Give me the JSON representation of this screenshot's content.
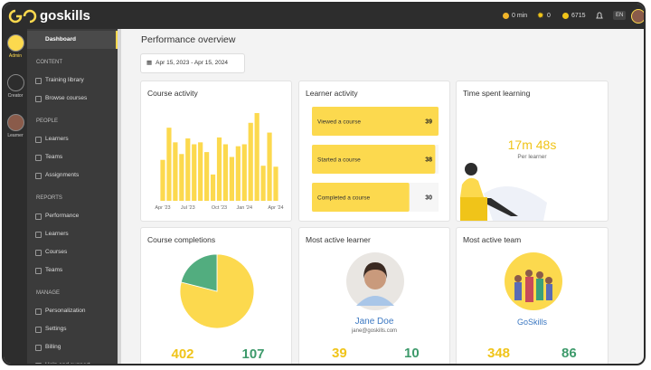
{
  "topbar": {
    "logo": "goskills",
    "time": "0 min",
    "stars": "0",
    "coins": "6715",
    "language": "EN"
  },
  "rail": [
    "Admin",
    "Creator",
    "Learner"
  ],
  "sidebar": {
    "active": "Dashboard",
    "sections": [
      {
        "heading": "CONTENT",
        "items": [
          "Training library",
          "Browse courses"
        ]
      },
      {
        "heading": "PEOPLE",
        "items": [
          "Learners",
          "Teams",
          "Assignments"
        ]
      },
      {
        "heading": "REPORTS",
        "items": [
          "Performance",
          "Learners",
          "Courses",
          "Teams"
        ]
      },
      {
        "heading": "MANAGE",
        "items": [
          "Personalization",
          "Settings",
          "Billing",
          "Help and support"
        ]
      }
    ]
  },
  "page_title": "Performance overview",
  "date_range": {
    "start": "Apr 15, 2023",
    "separator": "-",
    "end": "Apr 15, 2024"
  },
  "course_activity": {
    "title": "Course activity",
    "type": "bar",
    "color": "#fcd94e",
    "categories": [
      "Apr '23",
      null,
      null,
      null,
      "Jul '23",
      null,
      null,
      null,
      null,
      "Oct '23",
      null,
      null,
      null,
      "Jan '24",
      null,
      null,
      null,
      null,
      "Apr '24"
    ],
    "values": [
      42,
      75,
      60,
      48,
      64,
      58,
      60,
      50,
      27,
      65,
      58,
      45,
      56,
      58,
      80,
      90,
      36,
      70,
      35
    ]
  },
  "learner_activity": {
    "title": "Learner activity",
    "color": "#fcd94e",
    "categories": [
      "Viewed a course",
      "Started a course",
      "Completed a course"
    ],
    "values": [
      39,
      38,
      30
    ]
  },
  "time_spent": {
    "title": "Time spent learning",
    "value": "17m 48s",
    "caption": "Per learner"
  },
  "course_completions": {
    "title": "Course completions",
    "type": "pie",
    "values": [
      402,
      107
    ],
    "colors": [
      "#fcd94e",
      "#52ad7f"
    ],
    "text_colors": [
      "#f0c419",
      "#3d9a6b"
    ]
  },
  "active_learner": {
    "title": "Most active learner",
    "name": "Jane Doe",
    "email": "jane@goskills.com",
    "values": [
      39,
      10
    ]
  },
  "active_team": {
    "title": "Most active team",
    "name": "GoSkills",
    "values": [
      348,
      86
    ]
  }
}
